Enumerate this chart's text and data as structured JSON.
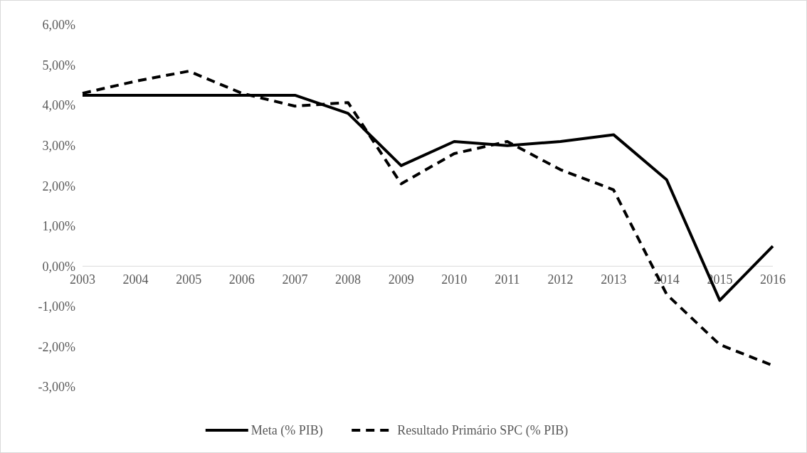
{
  "chart_data": {
    "type": "line",
    "categories": [
      "2003",
      "2004",
      "2005",
      "2006",
      "2007",
      "2008",
      "2009",
      "2010",
      "2011",
      "2012",
      "2013",
      "2014",
      "2015",
      "2016"
    ],
    "series": [
      {
        "name": "Meta (% PIB)",
        "color": "#000000",
        "line_style": "solid",
        "values": [
          4.25,
          4.25,
          4.25,
          4.25,
          4.25,
          3.8,
          2.5,
          3.1,
          3.0,
          3.1,
          3.27,
          2.15,
          -0.85,
          0.5
        ]
      },
      {
        "name": "Resultado Primário SPC (% PIB)",
        "color": "#000000",
        "line_style": "dashed",
        "values": [
          4.3,
          4.6,
          4.85,
          4.3,
          3.98,
          4.07,
          2.05,
          2.8,
          3.1,
          2.4,
          1.9,
          -0.7,
          -1.95,
          -2.47
        ]
      }
    ],
    "ylim": [
      -3,
      6
    ],
    "yticks": [
      {
        "value": -3,
        "label": "-3,00%"
      },
      {
        "value": -2,
        "label": "-2,00%"
      },
      {
        "value": -1,
        "label": "-1,00%"
      },
      {
        "value": 0,
        "label": "0,00%"
      },
      {
        "value": 1,
        "label": "1,00%"
      },
      {
        "value": 2,
        "label": "2,00%"
      },
      {
        "value": 3,
        "label": "3,00%"
      },
      {
        "value": 4,
        "label": "4,00%"
      },
      {
        "value": 5,
        "label": "5,00%"
      },
      {
        "value": 6,
        "label": "6,00%"
      }
    ],
    "grid": false,
    "legend": "bottom"
  }
}
